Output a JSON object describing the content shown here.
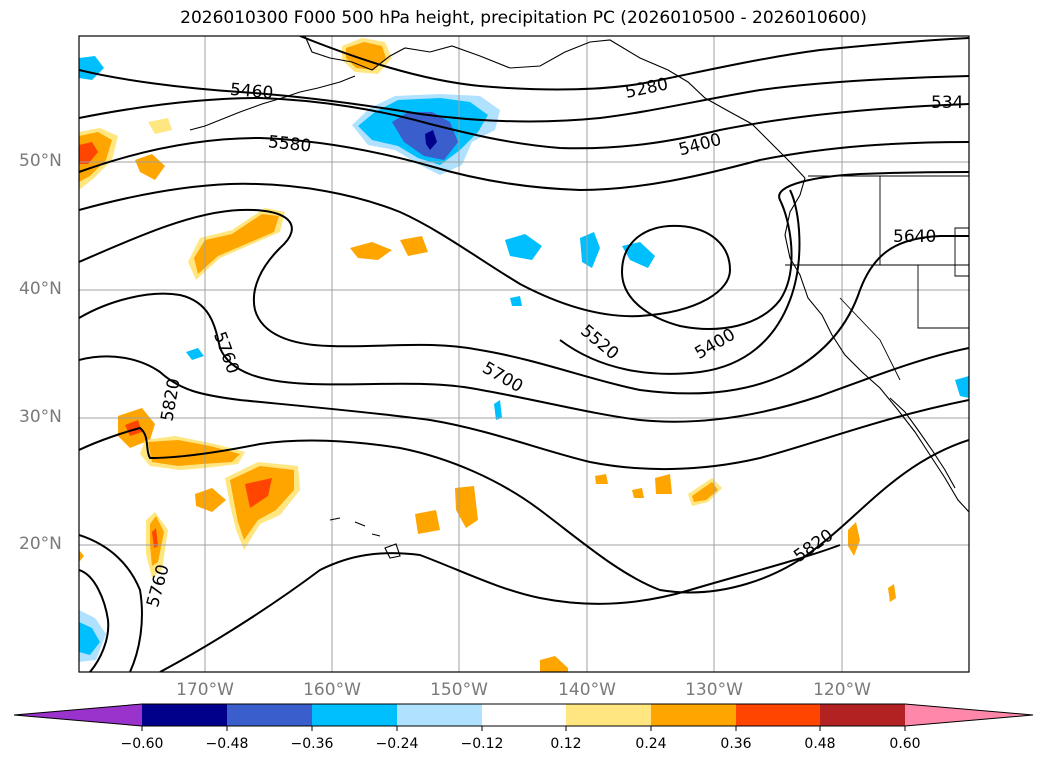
{
  "title": "2026010300 F000 500 hPa height, precipitation PC (2026010500 - 2026010600)",
  "lat_labels": [
    "50°N",
    "40°N",
    "30°N",
    "20°N"
  ],
  "lon_labels": [
    "170°W",
    "160°W",
    "150°W",
    "140°W",
    "130°W",
    "120°W"
  ],
  "contour_labels": [
    "5460",
    "5580",
    "5280",
    "5400",
    "534",
    "5640",
    "5400",
    "5520",
    "5760",
    "5820",
    "5700",
    "5820",
    "5760"
  ],
  "colorbar": {
    "ticks": [
      "−0.60",
      "−0.48",
      "−0.36",
      "−0.24",
      "−0.12",
      "0.12",
      "0.24",
      "0.36",
      "0.48",
      "0.60"
    ],
    "colors": [
      "#9933cc",
      "#00008b",
      "#3a5fcd",
      "#00bfff",
      "#b0e2ff",
      "#ffffff",
      "#ffe680",
      "#ffa500",
      "#ff4500",
      "#b22222",
      "#ff88aa"
    ]
  },
  "colors": {
    "contour": "#000000",
    "grid": "#a0a0a0",
    "coast": "#000000"
  }
}
